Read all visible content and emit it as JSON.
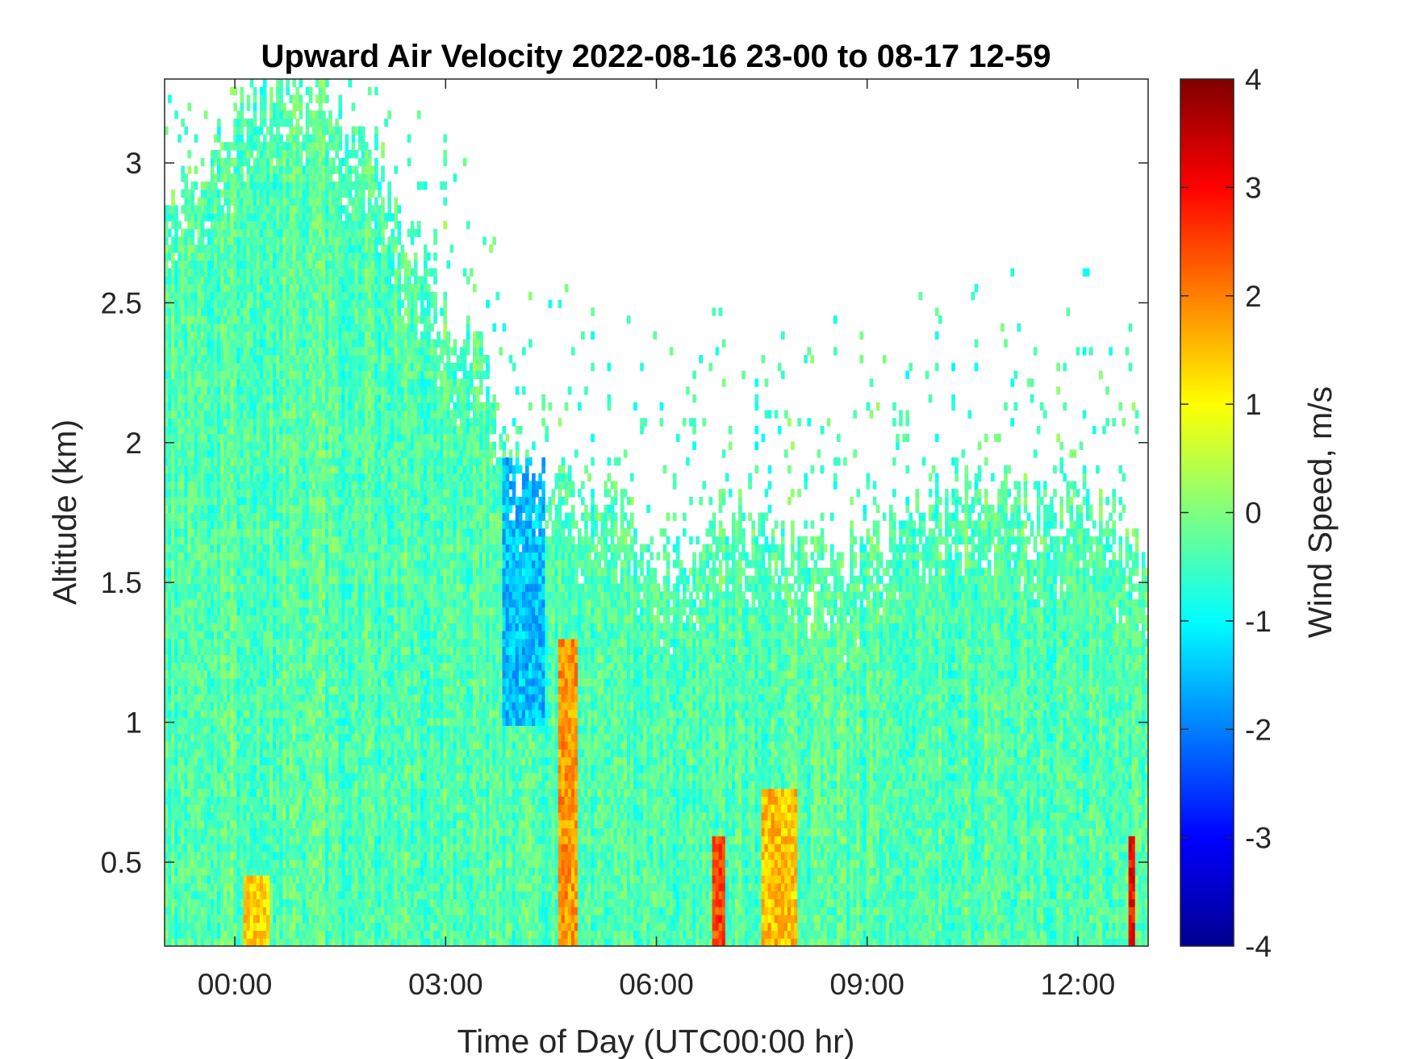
{
  "chart_data": {
    "type": "heatmap",
    "title": "Upward Air Velocity 2022-08-16 23-00 to 08-17 12-59",
    "xlabel": "Time of Day (UTC00:00 hr)",
    "ylabel": "Altitude (km)",
    "colorbar_label": "Wind Speed, m/s",
    "colormap": "jet",
    "clim": [
      -4,
      4
    ],
    "x_unit": "hours relative to 00:00 UTC",
    "xlim": [
      -1.0,
      13.0
    ],
    "ylim": [
      0.2,
      3.3
    ],
    "xticks": [
      0,
      3,
      6,
      9,
      12
    ],
    "xtick_labels": [
      "00:00",
      "03:00",
      "06:00",
      "09:00",
      "12:00"
    ],
    "yticks": [
      0.5,
      1,
      1.5,
      2,
      2.5,
      3
    ],
    "ytick_labels": [
      "0.5",
      "1",
      "1.5",
      "2",
      "2.5",
      "3"
    ],
    "cticks": [
      -4,
      -3,
      -2,
      -1,
      0,
      1,
      2,
      3,
      4
    ],
    "ctick_labels": [
      "-4",
      "-3",
      "-2",
      "-1",
      "0",
      "1",
      "2",
      "3",
      "4"
    ],
    "data_top_km": {
      "x": [
        -1.0,
        -0.5,
        0.0,
        0.5,
        1.0,
        1.5,
        2.0,
        2.5,
        3.0,
        3.5,
        3.8,
        4.0,
        4.5,
        5.0,
        5.5,
        6.0,
        6.5,
        7.0,
        7.5,
        8.0,
        8.5,
        9.0,
        9.5,
        10.0,
        10.5,
        11.0,
        11.5,
        12.0,
        12.5,
        12.7,
        13.0
      ],
      "y": [
        2.9,
        2.95,
        3.15,
        3.3,
        3.25,
        3.15,
        3.0,
        2.75,
        2.45,
        2.3,
        2.0,
        1.9,
        1.85,
        1.8,
        1.75,
        1.6,
        1.55,
        1.75,
        1.7,
        1.65,
        1.6,
        1.6,
        1.7,
        1.8,
        1.85,
        1.8,
        1.75,
        1.8,
        1.75,
        1.6,
        1.6
      ]
    },
    "notable_features": [
      {
        "x": [
          3.8,
          4.4
        ],
        "y": [
          1.0,
          1.95
        ],
        "value": -1.5
      },
      {
        "x": [
          4.6,
          4.9
        ],
        "y": [
          0.2,
          1.3
        ],
        "value": 1.8
      },
      {
        "x": [
          6.8,
          7.0
        ],
        "y": [
          0.2,
          0.6
        ],
        "value": 2.5
      },
      {
        "x": [
          7.5,
          8.0
        ],
        "y": [
          0.2,
          0.75
        ],
        "value": 1.5
      },
      {
        "x": [
          0.1,
          0.5
        ],
        "y": [
          0.2,
          0.45
        ],
        "value": 1.3
      },
      {
        "x": [
          12.7,
          12.8
        ],
        "y": [
          0.2,
          0.6
        ],
        "value": 3.0
      }
    ]
  }
}
